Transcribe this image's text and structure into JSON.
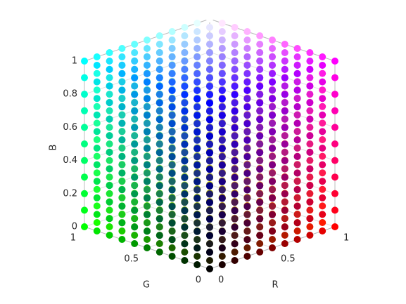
{
  "chart_data": {
    "type": "scatter3d",
    "xlabel": "R",
    "ylabel": "G",
    "zlabel": "B",
    "x": [
      0,
      0.1,
      0.2,
      0.3,
      0.4,
      0.5,
      0.6,
      0.7,
      0.8,
      0.9,
      1
    ],
    "y": [
      0,
      0.1,
      0.2,
      0.3,
      0.4,
      0.5,
      0.6,
      0.7,
      0.8,
      0.9,
      1
    ],
    "z": [
      0,
      0.1,
      0.2,
      0.3,
      0.4,
      0.5,
      0.6,
      0.7,
      0.8,
      0.9,
      1
    ],
    "xlim": [
      0,
      1
    ],
    "ylim": [
      0,
      1
    ],
    "zlim": [
      0,
      1
    ],
    "xticks": [
      0,
      0.5,
      1
    ],
    "yticks": [
      0,
      0.5,
      1
    ],
    "zticks": [
      0,
      0.2,
      0.4,
      0.6,
      0.8,
      1
    ],
    "grid": true
  }
}
